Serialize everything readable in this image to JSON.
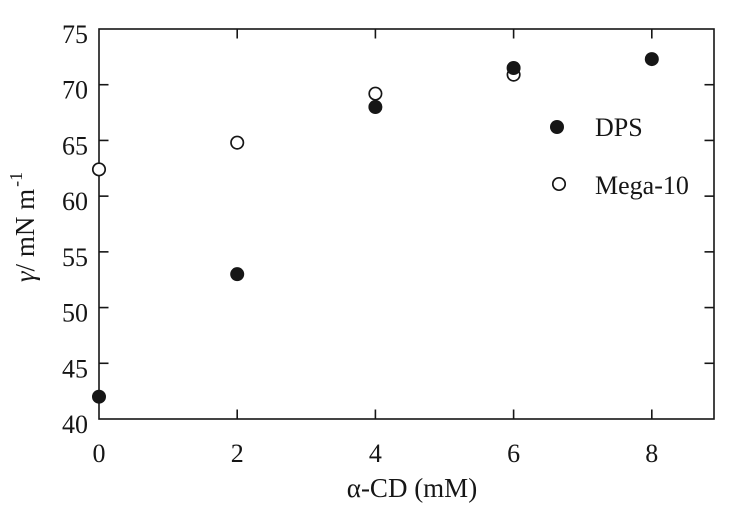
{
  "figure": {
    "background": "#ffffff",
    "ink_color": "#161616"
  },
  "chart_data": {
    "type": "scatter",
    "title": "",
    "xlabel": "α-CD (mM)",
    "ylabel": "γ/ mN m⁻¹",
    "ylabel_parts": {
      "gamma": "γ",
      "rest": "/ mN m",
      "superscript": "-1"
    },
    "xlim": [
      0,
      8.9
    ],
    "ylim": [
      40,
      75
    ],
    "x_ticks": [
      0,
      2,
      4,
      6,
      8
    ],
    "y_ticks": [
      40,
      45,
      50,
      55,
      60,
      65,
      70,
      75
    ],
    "grid": false,
    "legend": {
      "position": "inside-right",
      "entries": [
        "DPS",
        "Mega-10"
      ]
    },
    "series": [
      {
        "name": "DPS",
        "marker": "filled-circle",
        "color": "#161616",
        "x": [
          0,
          2,
          4,
          6,
          8
        ],
        "y": [
          42,
          53,
          68,
          71.5,
          72.3
        ]
      },
      {
        "name": "Mega-10",
        "marker": "open-circle",
        "color": "#161616",
        "x": [
          0,
          2,
          4,
          6
        ],
        "y": [
          62.4,
          64.8,
          69.2,
          70.9
        ]
      }
    ]
  }
}
